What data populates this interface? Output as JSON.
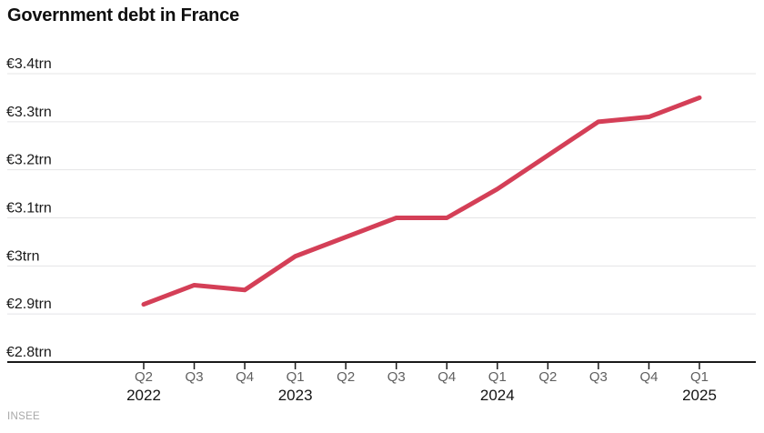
{
  "header": {
    "title": "Government debt in France"
  },
  "source": {
    "label": "INSEE"
  },
  "colors": {
    "line": "#d43f57",
    "grid": "#e4e4e6",
    "axis": "#1a1a1a",
    "y_tick_label": "#1a1a1a",
    "quarter_label": "#5f5f5f",
    "year_label": "#141414",
    "source_text": "#a8a8a8",
    "background": "#ffffff"
  },
  "chart_data": {
    "type": "line",
    "title": "Government debt in France",
    "categories": [
      "Q2 2022",
      "Q3 2022",
      "Q4 2022",
      "Q1 2023",
      "Q2 2023",
      "Q3 2023",
      "Q4 2023",
      "Q1 2024",
      "Q2 2024",
      "Q3 2024",
      "Q4 2024",
      "Q1 2025"
    ],
    "x_quarter_labels": [
      "Q2",
      "Q3",
      "Q4",
      "Q1",
      "Q2",
      "Q3",
      "Q4",
      "Q1",
      "Q2",
      "Q3",
      "Q4",
      "Q1"
    ],
    "x_year_labels": [
      {
        "index": 0,
        "label": "2022"
      },
      {
        "index": 3,
        "label": "2023"
      },
      {
        "index": 7,
        "label": "2024"
      },
      {
        "index": 11,
        "label": "2025"
      }
    ],
    "series": [
      {
        "name": "Government debt",
        "unit": "EUR trn",
        "values": [
          2.92,
          2.96,
          2.95,
          3.02,
          3.06,
          3.1,
          3.1,
          3.16,
          3.23,
          3.3,
          3.31,
          3.35
        ]
      }
    ],
    "y_ticks": [
      {
        "value": 3.4,
        "label": "€3.4trn"
      },
      {
        "value": 3.3,
        "label": "€3.3trn"
      },
      {
        "value": 3.2,
        "label": "€3.2trn"
      },
      {
        "value": 3.1,
        "label": "€3.1trn"
      },
      {
        "value": 3.0,
        "label": "€3trn"
      },
      {
        "value": 2.9,
        "label": "€2.9trn"
      },
      {
        "value": 2.8,
        "label": "€2.8trn"
      }
    ],
    "ylim": [
      2.8,
      3.4
    ],
    "xlabel": "",
    "ylabel": "",
    "grid": "horizontal",
    "legend": "none",
    "source": "INSEE"
  }
}
